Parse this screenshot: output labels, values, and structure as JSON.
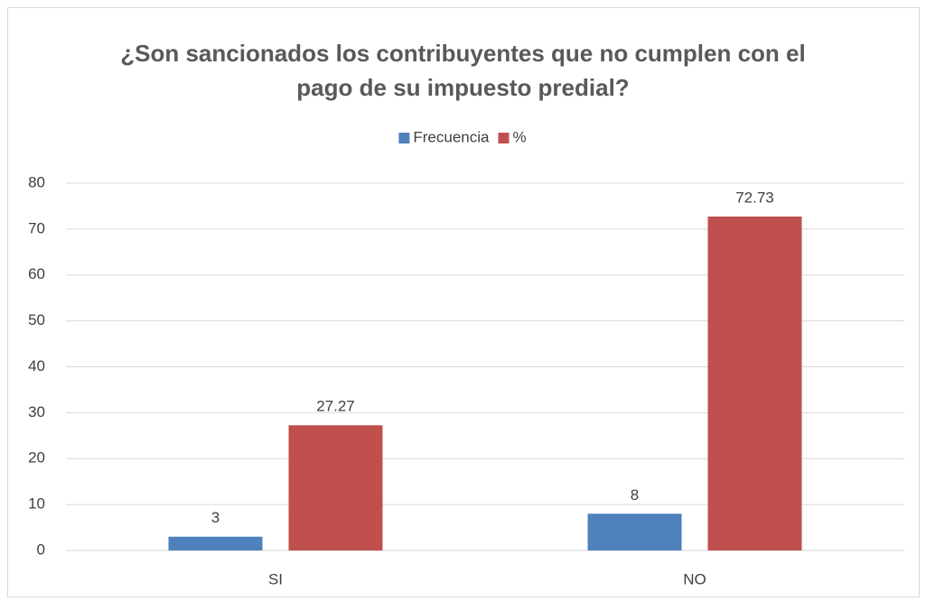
{
  "chart_data": {
    "type": "bar",
    "title": "¿Son sancionados los contribuyentes que no cumplen con el pago de su impuesto predial?",
    "categories": [
      "SI",
      "NO"
    ],
    "series": [
      {
        "name": "Frecuencia",
        "color": "#4f81bd",
        "values": [
          3,
          8
        ]
      },
      {
        "name": "%",
        "color": "#c0504d",
        "values": [
          27.27,
          72.73
        ]
      }
    ],
    "ylim": [
      0,
      80
    ],
    "yticks": [
      0,
      10,
      20,
      30,
      40,
      50,
      60,
      70,
      80
    ],
    "grid": true,
    "legend": "top"
  }
}
